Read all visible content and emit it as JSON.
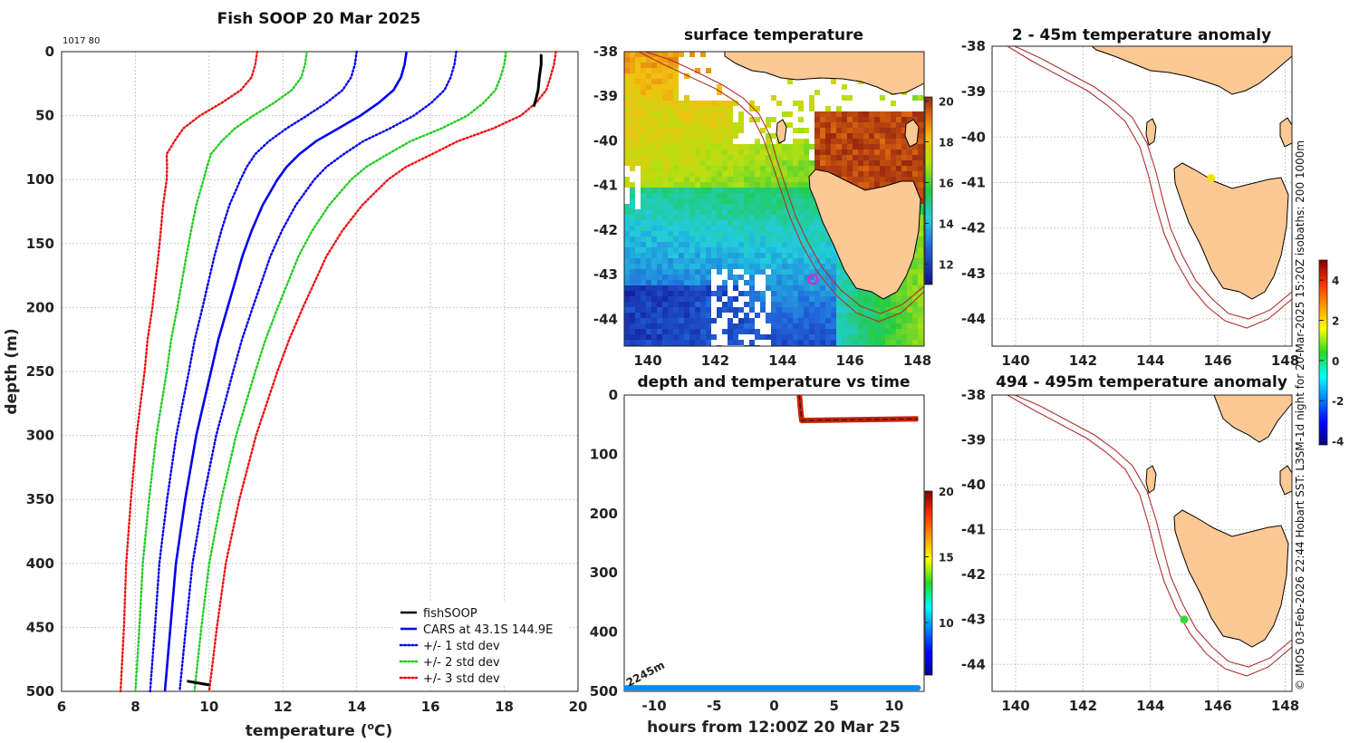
{
  "chart_data": [
    {
      "type": "line",
      "title": "Fish SOOP 20 Mar 2025",
      "corner_label": "1017 80",
      "xlabel": "temperature (",
      "xlabel_sup": "o",
      "xlabel_end": "C)",
      "ylabel": "depth (m)",
      "xlim": [
        6,
        20
      ],
      "ylim": [
        0,
        500
      ],
      "x_ticks": [
        "6",
        "8",
        "10",
        "12",
        "14",
        "16",
        "18",
        "20"
      ],
      "y_ticks": [
        "0",
        "50",
        "100",
        "150",
        "200",
        "250",
        "300",
        "350",
        "400",
        "450",
        "500"
      ],
      "depths": [
        0,
        10,
        20,
        30,
        40,
        50,
        60,
        70,
        80,
        90,
        100,
        120,
        140,
        160,
        180,
        200,
        225,
        250,
        275,
        300,
        350,
        400,
        450,
        500
      ],
      "cars_mean": [
        15.35,
        15.3,
        15.2,
        15.0,
        14.6,
        14.1,
        13.5,
        12.9,
        12.45,
        12.1,
        11.85,
        11.45,
        11.15,
        10.9,
        10.7,
        10.5,
        10.25,
        10.05,
        9.85,
        9.65,
        9.35,
        9.1,
        8.95,
        8.8
      ],
      "std_dev": [
        1.35,
        1.35,
        1.35,
        1.38,
        1.42,
        1.45,
        1.4,
        1.28,
        1.2,
        1.08,
        1.0,
        0.9,
        0.82,
        0.76,
        0.72,
        0.68,
        0.64,
        0.6,
        0.57,
        0.54,
        0.49,
        0.45,
        0.42,
        0.4
      ],
      "fishsoop_upper": {
        "depths": [
          2,
          10,
          20,
          30,
          38,
          43
        ],
        "temps": [
          19.0,
          19.0,
          18.95,
          18.92,
          18.85,
          18.8
        ]
      },
      "fishsoop_lower": {
        "depths": [
          492,
          494,
          495
        ],
        "temps": [
          9.4,
          9.8,
          10.0
        ]
      },
      "series": [
        {
          "name": "fishSOOP",
          "color": "#000000",
          "style": "solid"
        },
        {
          "name": "CARS at 43.1S 144.9E",
          "color": "#0000ee",
          "style": "solid"
        },
        {
          "name": "+/- 1 std dev",
          "color": "#0000ee",
          "style": "dotted"
        },
        {
          "name": "+/- 2 std dev",
          "color": "#22cc22",
          "style": "dotted"
        },
        {
          "name": "+/- 3 std dev",
          "color": "#ee1111",
          "style": "dotted"
        }
      ],
      "legend_position": "bottom-right"
    },
    {
      "type": "heatmap",
      "title": "surface temperature",
      "xlim": [
        139.3,
        148.2
      ],
      "ylim": [
        -44.6,
        -38
      ],
      "x_ticks": [
        "140",
        "142",
        "144",
        "146",
        "148"
      ],
      "y_ticks": [
        "-38",
        "-39",
        "-40",
        "-41",
        "-42",
        "-43",
        "-44"
      ],
      "colorbar_range": [
        11,
        20.2
      ],
      "colorbar_ticks": [
        "12",
        "14",
        "16",
        "18",
        "20"
      ],
      "marker": {
        "lon": 144.9,
        "lat": -43.1,
        "color": "#cc33cc"
      }
    },
    {
      "type": "scatter",
      "title": "depth and temperature vs time",
      "xlabel": "hours from 12:00Z 20 Mar 25",
      "xlim": [
        -12.5,
        12.5
      ],
      "ylim": [
        0,
        500
      ],
      "x_ticks": [
        "-10",
        "-5",
        "0",
        "5",
        "10"
      ],
      "y_ticks": [
        "0",
        "100",
        "200",
        "300",
        "400",
        "500"
      ],
      "bottom_label": "2245m",
      "colorbar_range": [
        6,
        20
      ],
      "colorbar_ticks": [
        "10",
        "15",
        "20"
      ],
      "upper_track": {
        "hours": [
          2.1,
          2.2,
          2.3,
          12.0
        ],
        "depths": [
          0,
          25,
          43,
          40
        ],
        "temp": 18.9
      },
      "bottom_track": {
        "hours_start": -12.3,
        "hours_end": 12.0,
        "depth": 494,
        "temp": 9.6
      }
    },
    {
      "type": "scatter",
      "title": "2 - 45m temperature anomaly",
      "xlim": [
        139.3,
        148.2
      ],
      "ylim": [
        -44.6,
        -38
      ],
      "x_ticks": [
        "140",
        "142",
        "144",
        "146",
        "148"
      ],
      "y_ticks": [
        "-38",
        "-39",
        "-40",
        "-41",
        "-42",
        "-43",
        "-44"
      ],
      "point": {
        "lon": 145.8,
        "lat": -40.9,
        "anomaly": 3.0,
        "color": "#f2e20a"
      }
    },
    {
      "type": "scatter",
      "title": "494 - 495m temperature anomaly",
      "xlim": [
        139.3,
        148.2
      ],
      "ylim": [
        -44.6,
        -38
      ],
      "x_ticks": [
        "140",
        "142",
        "144",
        "146",
        "148"
      ],
      "y_ticks": [
        "-38",
        "-39",
        "-40",
        "-41",
        "-42",
        "-43",
        "-44"
      ],
      "point": {
        "lon": 145.0,
        "lat": -43.0,
        "anomaly": 0.5,
        "color": "#33dd33"
      }
    }
  ],
  "anomaly_colorbar": {
    "range": [
      -4.2,
      5
    ],
    "ticks": [
      "-4",
      "-2",
      "0",
      "2",
      "4"
    ]
  },
  "side_note": "© IMOS 03-Feb-2026 22:44 Hobart SST: L3SM-1d night for 20-Mar-2025 15:20Z isobaths: 200  1000m",
  "colors": {
    "land": "#fcc894",
    "isobath": "#b03030",
    "grid": "#c8c8c8"
  }
}
